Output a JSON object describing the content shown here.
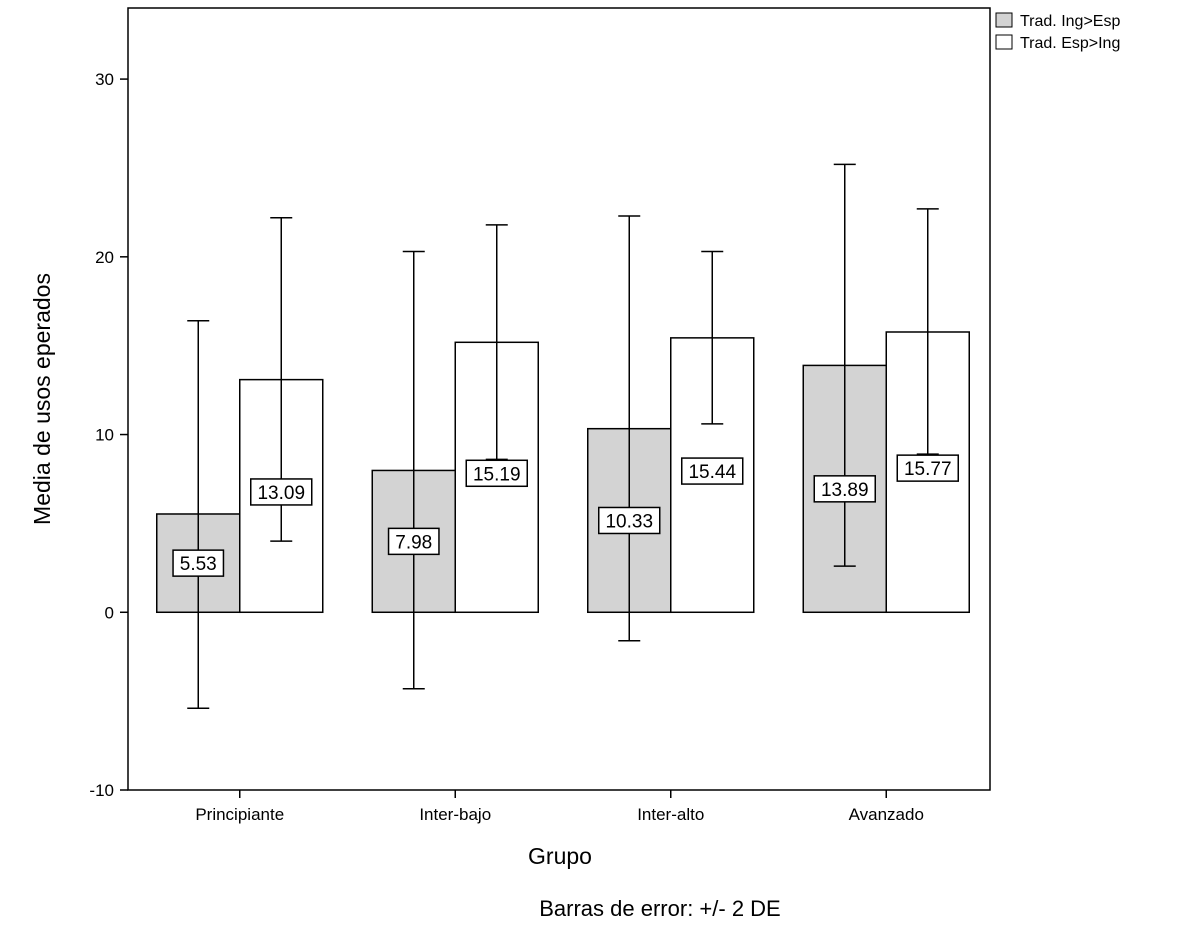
{
  "chart_data": {
    "type": "bar",
    "xlabel": "Grupo",
    "ylabel": "Media de usos eperados",
    "footnote": "Barras de error: +/- 2 DE",
    "categories": [
      "Principiante",
      "Inter-bajo",
      "Inter-alto",
      "Avanzado"
    ],
    "ylim": [
      -10,
      34
    ],
    "yticks": [
      -10,
      0,
      10,
      20,
      30
    ],
    "grid": false,
    "legend_position": "top-right",
    "series": [
      {
        "name": "Trad. Ing>Esp",
        "color": "#d3d3d3",
        "values": [
          5.53,
          7.98,
          10.33,
          13.89
        ],
        "labels": [
          "5.53",
          "7.98",
          "10.33",
          "13.89"
        ],
        "error_low": [
          -5.4,
          -4.3,
          -1.6,
          2.6
        ],
        "error_high": [
          16.4,
          20.3,
          22.3,
          25.2
        ]
      },
      {
        "name": "Trad. Esp>Ing",
        "color": "#ffffff",
        "values": [
          13.09,
          15.19,
          15.44,
          15.77
        ],
        "labels": [
          "13.09",
          "15.19",
          "15.44",
          "15.77"
        ],
        "error_low": [
          4.0,
          8.6,
          10.6,
          8.9
        ],
        "error_high": [
          22.2,
          21.8,
          20.3,
          22.7
        ]
      }
    ]
  }
}
